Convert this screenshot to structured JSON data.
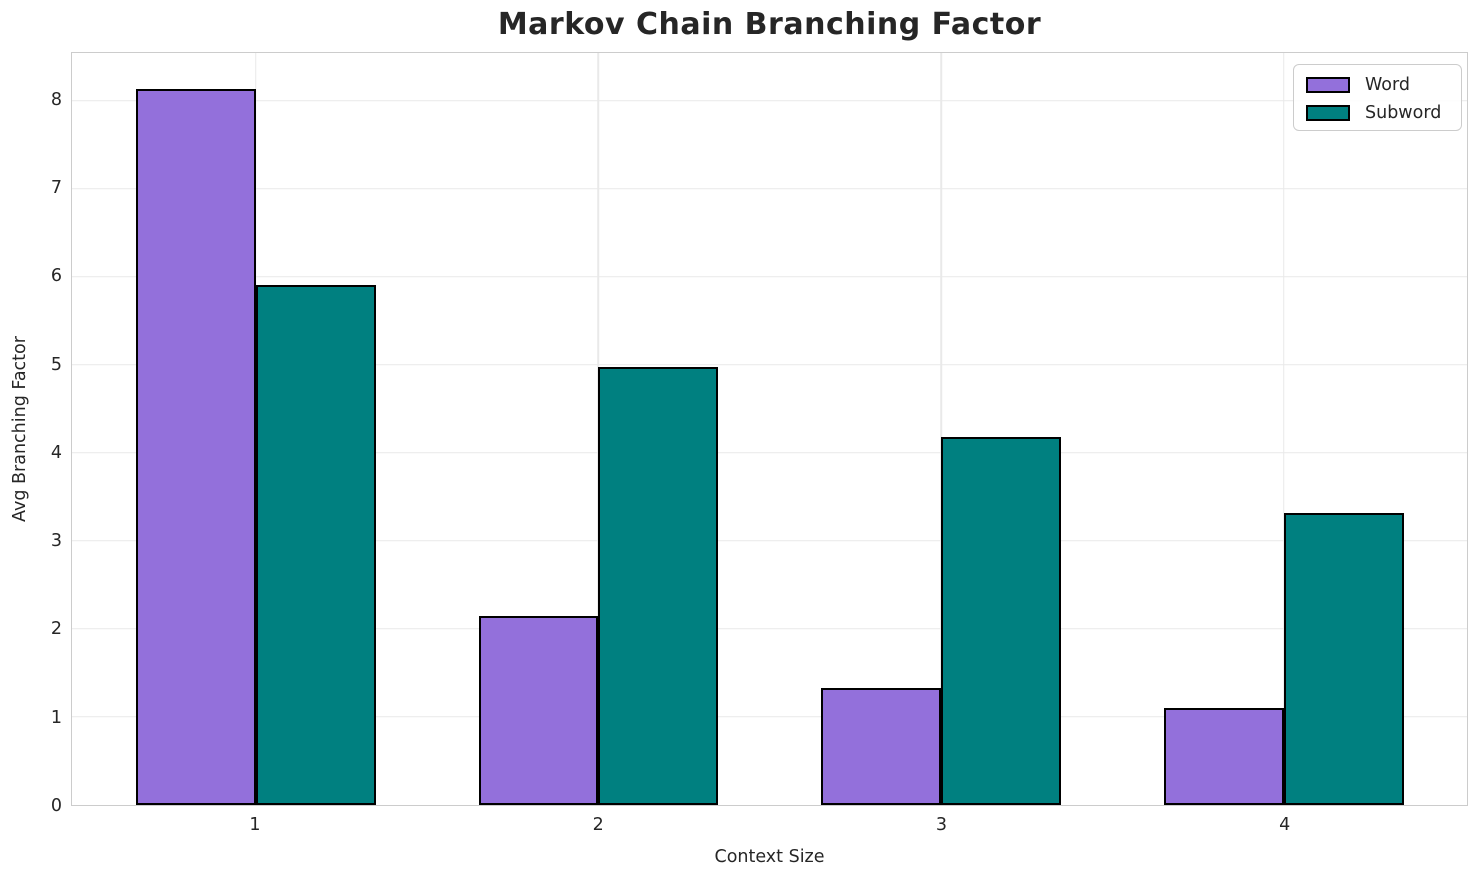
{
  "chart_data": {
    "type": "bar",
    "title": "Markov Chain Branching Factor",
    "xlabel": "Context Size",
    "ylabel": "Avg Branching Factor",
    "categories": [
      "1",
      "2",
      "3",
      "4"
    ],
    "x_positions": [
      1,
      2,
      3,
      4
    ],
    "series": [
      {
        "name": "Word",
        "color": "#9370DB",
        "values": [
          8.13,
          2.15,
          1.33,
          1.1
        ]
      },
      {
        "name": "Subword",
        "color": "#008080",
        "values": [
          5.9,
          4.97,
          4.18,
          3.32
        ]
      }
    ],
    "bar_width": 0.35,
    "bar_edge_color": "#000000",
    "xlim": [
      0.464,
      4.534
    ],
    "ylim": [
      0,
      8.54
    ],
    "yticks": [
      0,
      1,
      2,
      3,
      4,
      5,
      6,
      7,
      8
    ],
    "grid": true,
    "grid_color": "#e9e9e9",
    "spine_color": "#cccccc",
    "legend_position": "upper right",
    "legend_labels": [
      "Word",
      "Subword"
    ]
  }
}
